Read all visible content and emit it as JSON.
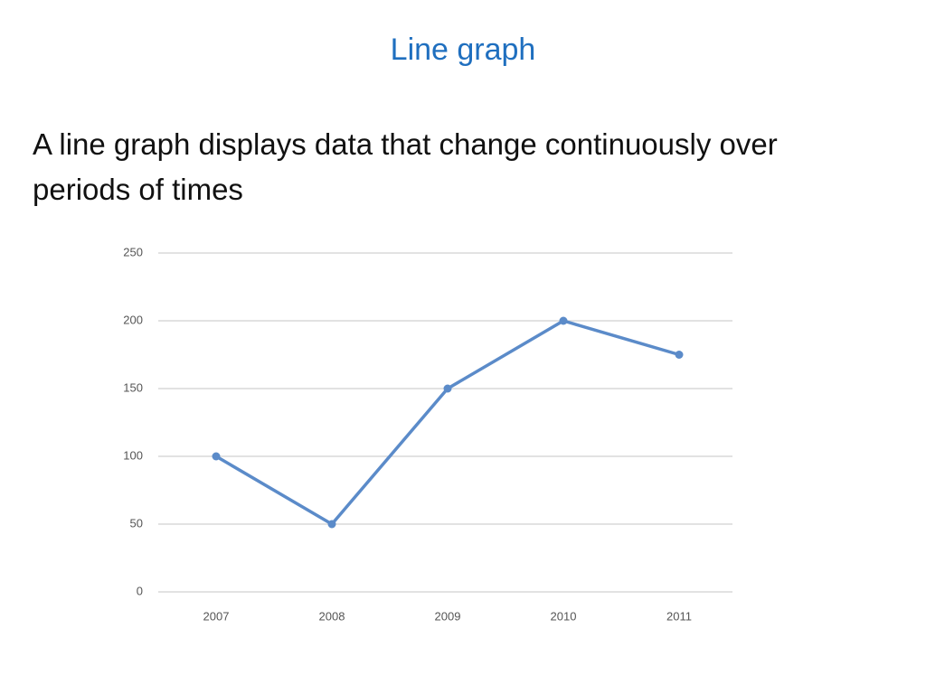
{
  "title": "Line graph",
  "body": "A line graph displays data that change continuously over periods of times",
  "chart_data": {
    "type": "line",
    "categories": [
      "2007",
      "2008",
      "2009",
      "2010",
      "2011"
    ],
    "series": [
      {
        "color": "#5b8bc9",
        "values": [
          100,
          50,
          150,
          200,
          175
        ]
      }
    ],
    "ylim": [
      0,
      250
    ],
    "yticks": [
      0,
      50,
      100,
      150,
      200,
      250
    ],
    "grid": true
  }
}
